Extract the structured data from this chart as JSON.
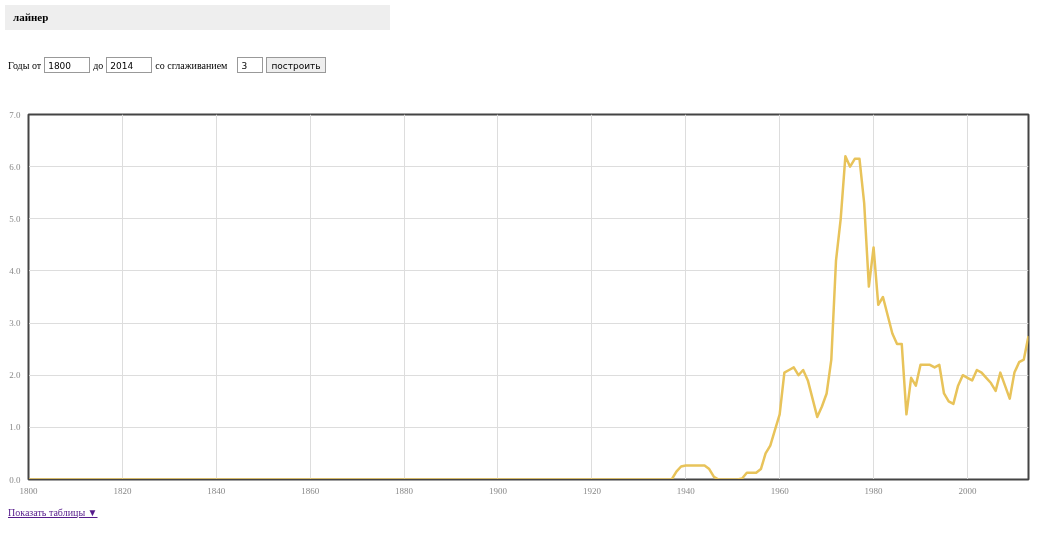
{
  "chart_data": {
    "type": "line",
    "title": "лайнер",
    "annotations": [
      "Годы от",
      "1800",
      "до",
      "2014",
      "со сглаживанием",
      "3",
      "построить",
      "Показать таблицы ▼"
    ],
    "x": [
      1800,
      1937,
      1938,
      1939,
      1940,
      1941,
      1942,
      1943,
      1944,
      1945,
      1946,
      1947,
      1948,
      1949,
      1950,
      1951,
      1952,
      1953,
      1954,
      1955,
      1956,
      1957,
      1958,
      1959,
      1960,
      1961,
      1962,
      1963,
      1964,
      1965,
      1966,
      1967,
      1968,
      1969,
      1970,
      1971,
      1972,
      1973,
      1974,
      1975,
      1976,
      1977,
      1978,
      1979,
      1980,
      1981,
      1982,
      1983,
      1984,
      1985,
      1986,
      1987,
      1988,
      1989,
      1990,
      1991,
      1992,
      1993,
      1994,
      1995,
      1996,
      1997,
      1998,
      1999,
      2000,
      2001,
      2002,
      2003,
      2004,
      2005,
      2006,
      2007,
      2008,
      2009,
      2010,
      2011,
      2012,
      2013
    ],
    "series": [
      {
        "color": "#e8c35a",
        "values": [
          0,
          0,
          0.15,
          0.25,
          0.27,
          0.27,
          0.27,
          0.27,
          0.27,
          0.2,
          0.05,
          0,
          0,
          0,
          0,
          0,
          0.02,
          0.13,
          0.13,
          0.13,
          0.2,
          0.5,
          0.65,
          0.95,
          1.25,
          2.05,
          2.1,
          2.15,
          2.0,
          2.1,
          1.9,
          1.55,
          1.2,
          1.4,
          1.65,
          2.3,
          4.2,
          5.0,
          6.2,
          6.0,
          6.15,
          6.15,
          5.3,
          3.7,
          4.45,
          3.35,
          3.5,
          3.15,
          2.8,
          2.6,
          2.6,
          1.25,
          1.95,
          1.8,
          2.2,
          2.2,
          2.2,
          2.15,
          2.2,
          1.65,
          1.5,
          1.45,
          1.8,
          2.0,
          1.95,
          1.9,
          2.1,
          2.05,
          1.95,
          1.85,
          1.7,
          2.05,
          1.8,
          1.55,
          2.05,
          2.25,
          2.3,
          2.75
        ]
      }
    ],
    "xlim": [
      1800,
      2013
    ],
    "ylim": [
      0,
      7
    ],
    "xticks": [
      1800,
      1820,
      1840,
      1860,
      1880,
      1900,
      1920,
      1940,
      1960,
      1980,
      2000
    ],
    "yticks": [
      {
        "value": 0,
        "label": "0.0"
      },
      {
        "value": 1,
        "label": "1.0"
      },
      {
        "value": 2,
        "label": "2.0"
      },
      {
        "value": 3,
        "label": "3.0"
      },
      {
        "value": 4,
        "label": "4.0"
      },
      {
        "value": 5,
        "label": "5.0"
      },
      {
        "value": 6,
        "label": "6.0"
      },
      {
        "value": 7,
        "label": "7.0"
      }
    ],
    "grid": true,
    "marker": "none",
    "line_style": "solid"
  }
}
